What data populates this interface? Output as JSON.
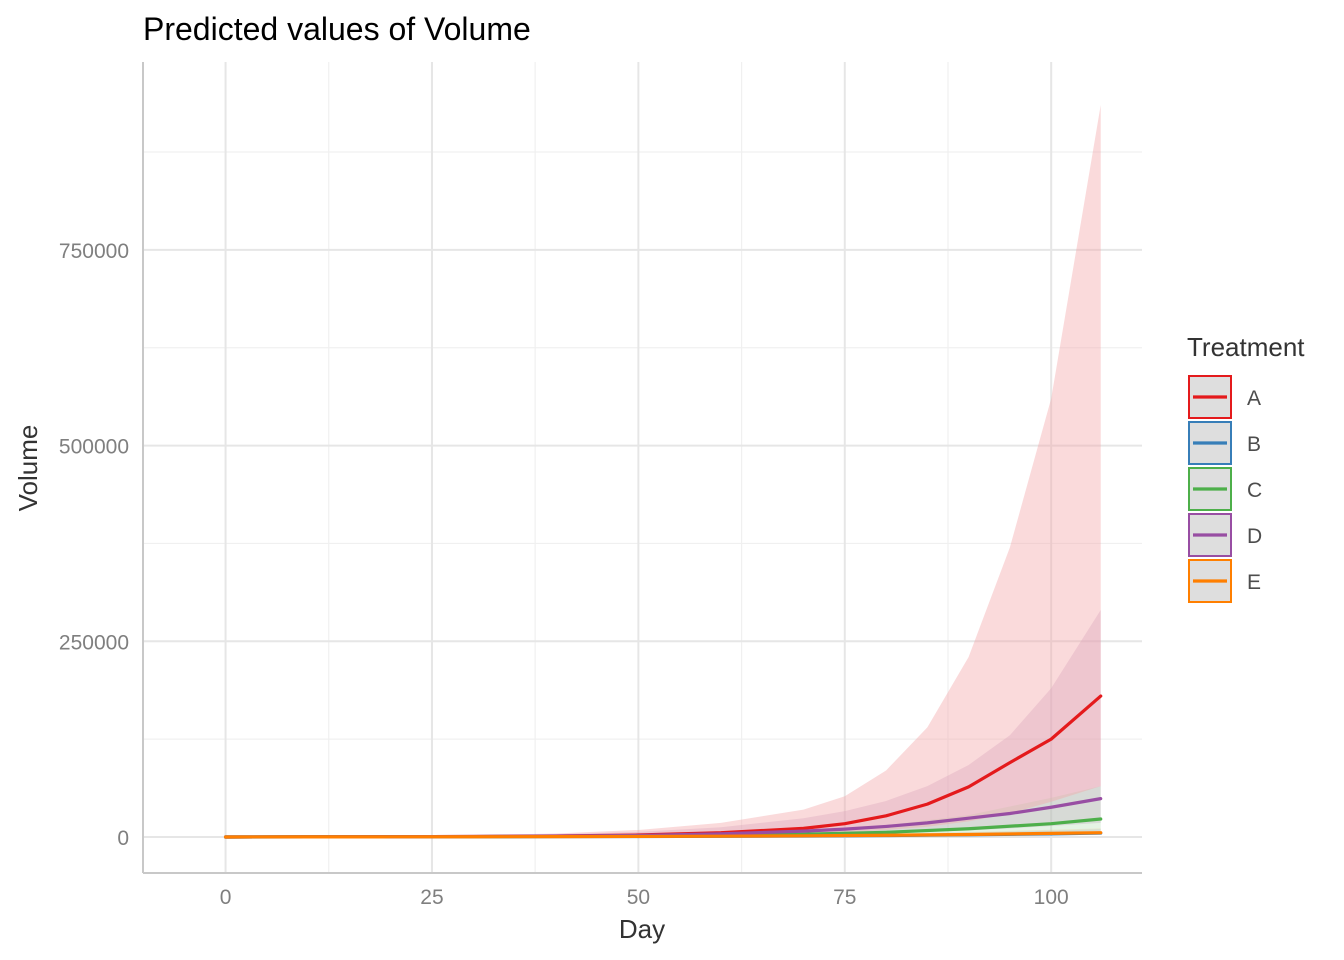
{
  "chart_data": {
    "type": "line",
    "title": "Predicted values of Volume",
    "xlabel": "Day",
    "ylabel": "Volume",
    "xlim": [
      -10,
      111
    ],
    "ylim": [
      -46000,
      990000
    ],
    "x_ticks": [
      0,
      25,
      50,
      75,
      100
    ],
    "x_tick_labels": [
      "0",
      "25",
      "50",
      "75",
      "100"
    ],
    "x_minor": [
      12.5,
      37.5,
      62.5,
      87.5
    ],
    "y_ticks": [
      0,
      250000,
      500000,
      750000
    ],
    "y_tick_labels": [
      "0",
      "250000",
      "500000",
      "750000"
    ],
    "y_minor": [
      125000,
      375000,
      625000,
      875000
    ],
    "grid": true,
    "legend": {
      "title": "Treatment",
      "position": "right"
    },
    "series": [
      {
        "name": "A",
        "color": "#E41A1C",
        "band_color": "#F4A6AA",
        "band_opacity": 0.42,
        "x": [
          0,
          10,
          20,
          30,
          40,
          50,
          60,
          70,
          75,
          80,
          85,
          90,
          95,
          100,
          106
        ],
        "y": [
          0,
          150,
          350,
          700,
          1300,
          2500,
          5500,
          11000,
          17000,
          27000,
          42000,
          64000,
          95000,
          125000,
          180000
        ],
        "lower": [
          0,
          50,
          120,
          250,
          500,
          1000,
          2000,
          4000,
          6000,
          9000,
          13000,
          20000,
          30000,
          45000,
          65000
        ],
        "upper": [
          0,
          400,
          1000,
          2200,
          4500,
          9000,
          18000,
          35000,
          52000,
          85000,
          140000,
          230000,
          370000,
          560000,
          935000
        ]
      },
      {
        "name": "B",
        "color": "#377EB8",
        "band_color": "#A6C8E4",
        "band_opacity": 0.3,
        "x": [
          0,
          10,
          20,
          30,
          40,
          50,
          60,
          70,
          80,
          90,
          100,
          106
        ],
        "y": [
          0,
          80,
          160,
          260,
          400,
          600,
          900,
          1300,
          1900,
          2800,
          4000,
          5000
        ],
        "lower": [
          0,
          40,
          80,
          130,
          200,
          300,
          450,
          650,
          950,
          1400,
          2000,
          2500
        ],
        "upper": [
          0,
          160,
          320,
          520,
          800,
          1200,
          1800,
          2600,
          3800,
          5600,
          8000,
          10000
        ]
      },
      {
        "name": "C",
        "color": "#4DAF4A",
        "band_color": "#A8D8A6",
        "band_opacity": 0.3,
        "x": [
          0,
          10,
          20,
          30,
          40,
          50,
          60,
          70,
          80,
          90,
          100,
          106
        ],
        "y": [
          0,
          100,
          250,
          450,
          750,
          1200,
          2000,
          3500,
          6000,
          10500,
          17000,
          23000
        ],
        "lower": [
          0,
          50,
          120,
          220,
          350,
          550,
          900,
          1500,
          2500,
          4000,
          6000,
          8000
        ],
        "upper": [
          0,
          250,
          550,
          1000,
          1700,
          2800,
          4800,
          8500,
          15000,
          28000,
          50000,
          65000
        ]
      },
      {
        "name": "D",
        "color": "#984EA3",
        "band_color": "#C59AC5",
        "band_opacity": 0.35,
        "x": [
          0,
          10,
          20,
          30,
          40,
          50,
          60,
          70,
          75,
          80,
          85,
          90,
          95,
          100,
          106
        ],
        "y": [
          0,
          120,
          300,
          600,
          1100,
          2000,
          4000,
          7500,
          10000,
          13500,
          18000,
          24000,
          30000,
          38000,
          49000
        ],
        "lower": [
          0,
          50,
          120,
          250,
          450,
          800,
          1500,
          2800,
          3800,
          5000,
          6500,
          8500,
          11000,
          14000,
          18000
        ],
        "upper": [
          0,
          350,
          900,
          1800,
          3500,
          6500,
          12500,
          24000,
          33000,
          46000,
          65000,
          92000,
          130000,
          190000,
          290000
        ]
      },
      {
        "name": "E",
        "color": "#FF7F00",
        "band_color": "#FFC28A",
        "band_opacity": 0.3,
        "x": [
          0,
          10,
          20,
          30,
          40,
          50,
          60,
          70,
          80,
          90,
          100,
          106
        ],
        "y": [
          0,
          100,
          200,
          320,
          480,
          700,
          1000,
          1500,
          2200,
          3200,
          4600,
          5500
        ],
        "lower": [
          0,
          50,
          100,
          160,
          240,
          350,
          500,
          750,
          1100,
          1600,
          2300,
          2750
        ],
        "upper": [
          0,
          200,
          400,
          640,
          960,
          1400,
          2000,
          3000,
          4400,
          6400,
          9200,
          11000
        ]
      }
    ]
  }
}
